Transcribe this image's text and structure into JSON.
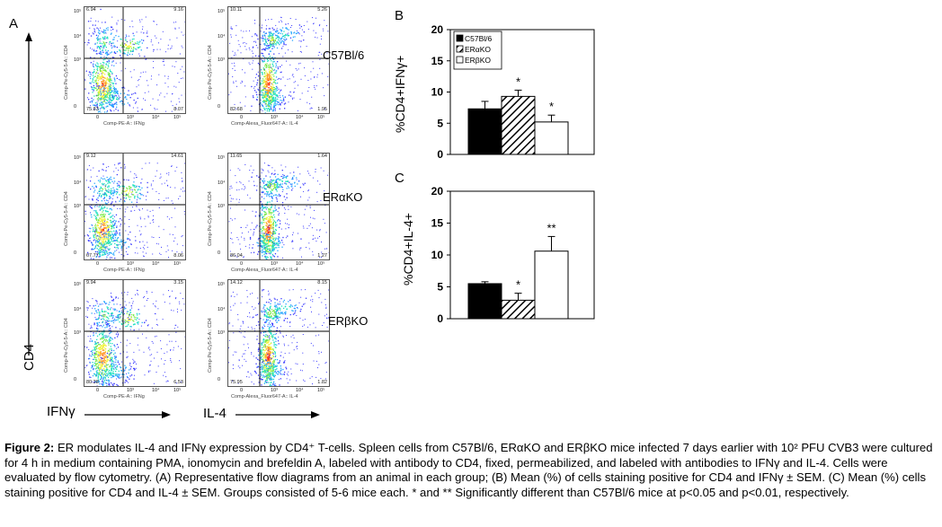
{
  "panel_a": {
    "letter": "A",
    "y_axis_label": "CD4",
    "x_axis_label_left": "IFNγ",
    "x_axis_label_right": "IL-4",
    "groups": [
      {
        "name": "C57Bl/6",
        "ifng_plot": {
          "q_ul": "6.94",
          "q_ur": "9.16",
          "q_ll": "75.83",
          "q_lr": "8.07"
        },
        "il4_plot": {
          "q_ul": "10.11",
          "q_ur": "5.26",
          "q_ll": "82.68",
          "q_lr": "1.95"
        }
      },
      {
        "name": "ERαKO",
        "ifng_plot": {
          "q_ul": "9.12",
          "q_ur": "14.61",
          "q_ll": "67.77",
          "q_lr": "8.06"
        },
        "il4_plot": {
          "q_ul": "11.65",
          "q_ur": "1.64",
          "q_ll": "86.04",
          "q_lr": "1.27"
        }
      },
      {
        "name": "ERβKO",
        "ifng_plot": {
          "q_ul": "9.94",
          "q_ur": "3.15",
          "q_ll": "80.38",
          "q_lr": "6.53"
        },
        "il4_plot": {
          "q_ul": "14.12",
          "q_ur": "8.15",
          "q_ll": "75.95",
          "q_lr": "1.82"
        }
      }
    ],
    "ifng_xaxis": "Comp-PE-A:: IFNg",
    "il4_xaxis": "Comp-Alexa_Fluor647-A:: IL-4",
    "yaxis_text": "Comp-Pe-Cy5-5-A:: CD4",
    "xticks": [
      "0",
      "10³",
      "10⁴",
      "10⁵"
    ],
    "yticks": [
      "10⁵",
      "10⁴",
      "10³",
      "0"
    ]
  },
  "panel_b": {
    "letter": "B",
    "ylabel": "%CD4+IFNγ+",
    "legend": [
      "C57Bl/6",
      "ERαKO",
      "ERβKO"
    ]
  },
  "panel_c": {
    "letter": "C",
    "ylabel": "%CD4+IL-4+"
  },
  "chart_data": [
    {
      "type": "bar",
      "panel": "B",
      "categories": [
        "C57Bl/6",
        "ERαKO",
        "ERβKO"
      ],
      "values": [
        7.3,
        9.3,
        5.2
      ],
      "errors": [
        1.2,
        1.0,
        1.1
      ],
      "significance": [
        "",
        "*",
        "*"
      ],
      "ylabel": "%CD4+IFNγ+",
      "ylim": [
        0,
        20
      ],
      "yticks": [
        0,
        5,
        10,
        15,
        20
      ]
    },
    {
      "type": "bar",
      "panel": "C",
      "categories": [
        "C57Bl/6",
        "ERαKO",
        "ERβKO"
      ],
      "values": [
        5.5,
        2.9,
        10.6
      ],
      "errors": [
        0.3,
        1.1,
        2.3
      ],
      "significance": [
        "",
        "*",
        "**"
      ],
      "ylabel": "%CD4+IL-4+",
      "ylim": [
        0,
        20
      ],
      "yticks": [
        0,
        5,
        10,
        15,
        20
      ]
    }
  ],
  "caption": {
    "label": "Figure 2:",
    "text": "ER modulates IL-4 and IFNγ expression by CD4⁺ T-cells. Spleen cells from C57Bl/6, ERαKO and ERβKO mice infected 7 days earlier with 10² PFU CVB3 were cultured for 4 h in medium containing PMA, ionomycin and brefeldin A, labeled with antibody to CD4, fixed, permeabilized, and labeled with antibodies to IFNγ and IL-4. Cells were evaluated by flow cytometry. (A) Representative flow diagrams from an animal in each group; (B) Mean (%) of cells staining positive for CD4 and IFNγ ± SEM. (C) Mean (%) cells staining positive for CD4 and IL-4 ± SEM. Groups consisted of 5-6 mice each. * and ** Significantly different than C57Bl/6 mice at p<0.05 and p<0.01, respectively."
  }
}
